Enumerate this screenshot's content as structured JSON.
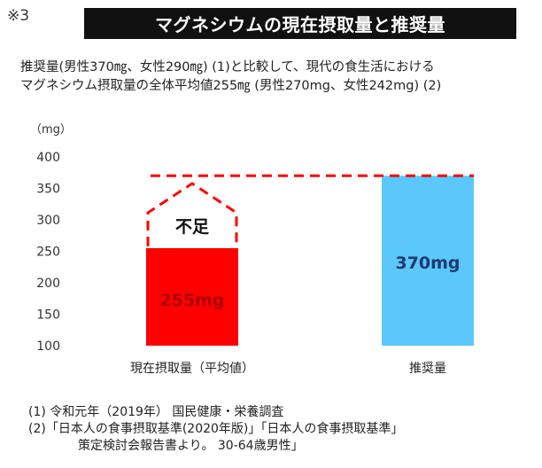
{
  "note_mark": "※3",
  "title": "マグネシウムの現在摂取量と推奨量",
  "description": [
    "推奨量(男性370㎎、女性290㎎) (1)と比較して、現代の食生活における",
    "マグネシウム摂取量の全体平均値255㎎ (男性270mg、女性242mg) (2)"
  ],
  "chart_data": {
    "type": "bar",
    "unit_label": "（mg）",
    "categories": [
      "現在摂取量（平均値）",
      "推奨量"
    ],
    "values": [
      255,
      370
    ],
    "data_labels": [
      "255mg",
      "370mg"
    ],
    "ylim": [
      100,
      400
    ],
    "yticks": [
      100,
      150,
      200,
      250,
      300,
      350,
      400
    ],
    "bar_colors": [
      "#ff0000",
      "#5ac8fa"
    ],
    "label_colors": [
      "#b00000",
      "#1f3a6e"
    ],
    "reference_line": {
      "value": 370,
      "color": "#ff0000",
      "style": "dashed"
    },
    "shortfall": {
      "label": "不足",
      "from": 255,
      "to": 370,
      "color": "#ff0000",
      "style": "dashed"
    },
    "grid": false,
    "legend": "none"
  },
  "footnotes": [
    "(1) 令和元年（2019年） 国民健康・栄養調査",
    "(2)「日本人の食事摂取基準(2020年版)」「日本人の食事摂取基準」",
    "策定検討会報告書より。 30-64歳男性」"
  ]
}
